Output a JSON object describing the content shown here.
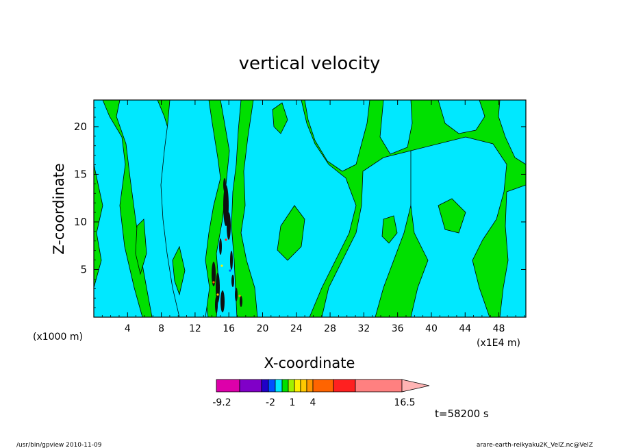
{
  "chart_data": {
    "type": "heatmap",
    "title": "vertical velocity",
    "xlabel": "X-coordinate",
    "ylabel": "Z-coordinate",
    "x_unit_left": "(x1000 m)",
    "x_unit_right": "(x1E4 m)",
    "x_ticks": [
      "4",
      "8",
      "12",
      "16",
      "20",
      "24",
      "28",
      "32",
      "36",
      "40",
      "44",
      "48"
    ],
    "y_ticks": [
      "5",
      "10",
      "15",
      "20"
    ],
    "xlim": [
      0,
      51.2
    ],
    "ylim": [
      0,
      22.8
    ],
    "colorbar": {
      "colors": [
        "#dd00aa",
        "#8000c8",
        "#2000c8",
        "#0050ff",
        "#00e8ff",
        "#00e000",
        "#a0f000",
        "#fff000",
        "#ffc800",
        "#ff9600",
        "#ff6400",
        "#ff2020",
        "#ff8080",
        "#ffb4b4"
      ],
      "labels": [
        "-9.2",
        "-2",
        "1",
        "4",
        "16.5"
      ],
      "label_bins": [
        0,
        3,
        6,
        9,
        13
      ]
    },
    "time_label": "t=58200 s",
    "footer_left": "/usr/bin/gpview   2010-11-09",
    "footer_right": "arare-earth-reikyaku2K_VelZ.nc@VelZ"
  }
}
